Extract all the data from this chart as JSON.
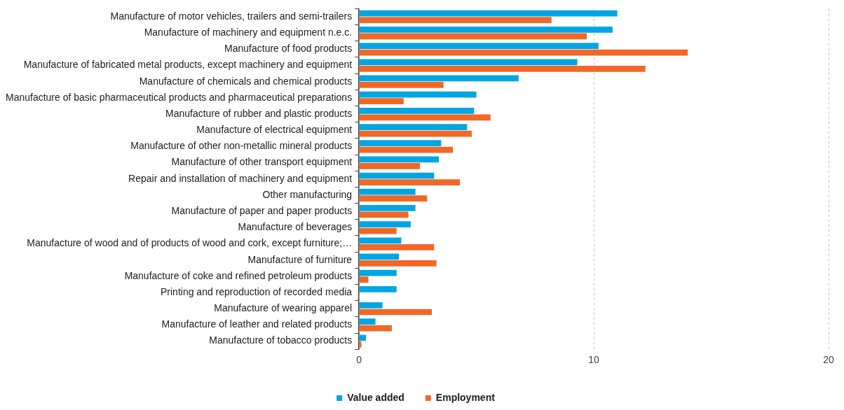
{
  "chart_data": {
    "type": "bar",
    "orientation": "horizontal",
    "categories": [
      "Manufacture of motor vehicles, trailers and semi-trailers",
      "Manufacture of machinery and equipment n.e.c.",
      "Manufacture of food products",
      "Manufacture of fabricated metal products, except machinery and equipment",
      "Manufacture of chemicals and chemical products",
      "Manufacture of basic pharmaceutical products and pharmaceutical preparations",
      "Manufacture of rubber and plastic products",
      "Manufacture of electrical equipment",
      "Manufacture of other non-metallic mineral products",
      "Manufacture of other transport equipment",
      "Repair and installation of machinery and equipment",
      "Other manufacturing",
      "Manufacture of paper and paper products",
      "Manufacture of beverages",
      "Manufacture of wood and of products of wood and cork, except furniture;…",
      "Manufacture of furniture",
      "Manufacture of coke and refined petroleum products",
      "Printing and reproduction of recorded media",
      "Manufacture of wearing apparel",
      "Manufacture of leather and related products",
      "Manufacture of tobacco products"
    ],
    "series": [
      {
        "name": "Value added",
        "color": "#00a6e3",
        "values": [
          11.0,
          10.8,
          10.2,
          9.3,
          6.8,
          5.0,
          4.9,
          4.6,
          3.5,
          3.4,
          3.2,
          2.4,
          2.4,
          2.2,
          1.8,
          1.7,
          1.6,
          1.6,
          1.0,
          0.7,
          0.3
        ]
      },
      {
        "name": "Employment",
        "color": "#f06827",
        "values": [
          8.2,
          9.7,
          14.0,
          12.2,
          3.6,
          1.9,
          5.6,
          4.8,
          4.0,
          2.6,
          4.3,
          2.9,
          2.1,
          1.6,
          3.2,
          3.3,
          0.4,
          null,
          3.1,
          1.4,
          0.1
        ]
      }
    ],
    "xlim": [
      0,
      20
    ],
    "xticks": [
      0,
      10,
      20
    ],
    "grid": "x",
    "legend": "bottom"
  }
}
